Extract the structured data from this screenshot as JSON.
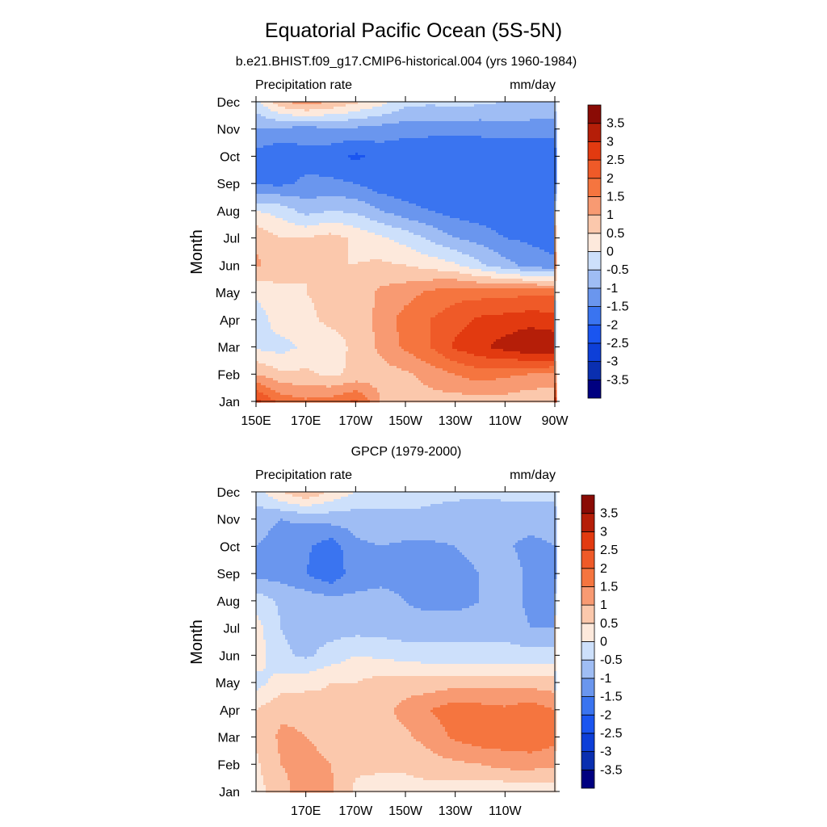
{
  "figure": {
    "title": "Equatorial Pacific Ocean (5S-5N)"
  },
  "colorbar": {
    "levels": [
      -3.5,
      -3,
      -2.5,
      -2,
      -1.5,
      -1,
      -0.5,
      0,
      0.5,
      1,
      1.5,
      2,
      2.5,
      3,
      3.5
    ],
    "labels": [
      "-3.5",
      "-3",
      "-2.5",
      "-2",
      "-1.5",
      "-1",
      "-0.5",
      "0",
      "0.5",
      "1",
      "1.5",
      "2",
      "2.5",
      "3",
      "3.5"
    ],
    "colors": [
      "#000080",
      "#0a2fb0",
      "#0d3fd8",
      "#1a55f0",
      "#3a74f0",
      "#6a96ee",
      "#9fbdf4",
      "#cde0fb",
      "#fde9dc",
      "#fbc8ac",
      "#f89a72",
      "#f5753f",
      "#ef5a28",
      "#e23a10",
      "#b51e08",
      "#8a0b05"
    ]
  },
  "chart_data": [
    {
      "type": "heatmap",
      "title": "b.e21.BHIST.f09_g17.CMIP6-historical.004 (yrs 1960-1984)",
      "left_string": "Precipitation rate",
      "right_string": "mm/day",
      "xlabel": "",
      "ylabel": "Month",
      "x_ticks": [
        "150E",
        "170E",
        "170W",
        "150W",
        "130W",
        "110W",
        "90W"
      ],
      "y_ticks": [
        "Jan",
        "Feb",
        "Mar",
        "Apr",
        "May",
        "Jun",
        "Jul",
        "Aug",
        "Sep",
        "Oct",
        "Nov",
        "Dec"
      ],
      "x_range": [
        "150E",
        "90W"
      ],
      "y_range": [
        "Jan",
        "Dec"
      ],
      "units": "mm/day",
      "x": [
        "150E",
        "160E",
        "170E",
        "180",
        "170W",
        "160W",
        "150W",
        "140W",
        "130W",
        "120W",
        "110W",
        "100W",
        "90W"
      ],
      "y": [
        "Jan",
        "Feb",
        "Mar",
        "Apr",
        "May",
        "Jun",
        "Jul",
        "Aug",
        "Sep",
        "Oct",
        "Nov",
        "Dec"
      ],
      "z": [
        [
          2.7,
          1.8,
          1.6,
          1.7,
          2.1,
          1.0,
          0.7,
          0.8,
          0.8,
          0.7,
          0.8,
          0.6,
          0.5
        ],
        [
          1.0,
          0.6,
          0.6,
          0.4,
          0.6,
          0.8,
          0.9,
          1.2,
          1.5,
          1.8,
          1.6,
          1.5,
          1.5
        ],
        [
          -0.1,
          -0.2,
          0.1,
          0.3,
          0.6,
          1.1,
          1.6,
          2.0,
          2.6,
          2.9,
          3.2,
          3.5,
          3.4
        ],
        [
          -0.3,
          0.3,
          0.4,
          0.6,
          0.6,
          1.2,
          1.7,
          2.0,
          2.3,
          2.6,
          2.7,
          2.8,
          2.7
        ],
        [
          0.1,
          0.4,
          0.5,
          0.6,
          0.6,
          1.1,
          1.3,
          1.6,
          1.8,
          1.8,
          1.8,
          1.9,
          1.9
        ],
        [
          1.1,
          0.7,
          0.5,
          0.5,
          0.5,
          0.6,
          0.5,
          0.3,
          0.1,
          -0.4,
          -0.8,
          -1.2,
          -1.4
        ],
        [
          0.9,
          0.5,
          0.5,
          0.7,
          0.4,
          0.1,
          -0.2,
          -0.6,
          -1.0,
          -1.2,
          -1.5,
          -1.6,
          -1.7
        ],
        [
          0.0,
          -0.2,
          -0.7,
          -0.5,
          -0.6,
          -1.0,
          -1.3,
          -1.5,
          -1.7,
          -1.8,
          -1.9,
          -1.9,
          -2.0
        ],
        [
          -1.6,
          -1.6,
          -1.4,
          -1.4,
          -1.5,
          -1.8,
          -1.9,
          -2.0,
          -2.0,
          -2.0,
          -2.0,
          -2.0,
          -2.0
        ],
        [
          -1.7,
          -1.9,
          -1.7,
          -1.8,
          -2.1,
          -1.8,
          -1.9,
          -2.0,
          -2.0,
          -2.0,
          -2.0,
          -2.0,
          -1.9
        ],
        [
          -1.0,
          -1.1,
          -1.2,
          -1.1,
          -1.1,
          -1.2,
          -1.3,
          -1.3,
          -1.3,
          -1.3,
          -1.2,
          -1.2,
          -1.3
        ],
        [
          -0.2,
          0.9,
          1.3,
          1.0,
          0.6,
          0.2,
          -0.3,
          -0.4,
          -0.3,
          -0.4,
          -0.5,
          -0.6,
          -0.5
        ]
      ]
    },
    {
      "type": "heatmap",
      "title": "GPCP (1979-2000)",
      "left_string": "Precipitation rate",
      "right_string": "mm/day",
      "xlabel": "",
      "ylabel": "Month",
      "x_ticks": [
        "170E",
        "170W",
        "150W",
        "130W",
        "110W"
      ],
      "y_ticks": [
        "Jan",
        "Feb",
        "Mar",
        "Apr",
        "May",
        "Jun",
        "Jul",
        "Aug",
        "Sep",
        "Oct",
        "Nov",
        "Dec"
      ],
      "x_range": [
        "150E",
        "90W"
      ],
      "y_range": [
        "Jan",
        "Dec"
      ],
      "units": "mm/day",
      "x": [
        "150E",
        "160E",
        "170E",
        "180",
        "170W",
        "160W",
        "150W",
        "140W",
        "130W",
        "120W",
        "110W",
        "100W",
        "90W"
      ],
      "y": [
        "Jan",
        "Feb",
        "Mar",
        "Apr",
        "May",
        "Jun",
        "Jul",
        "Aug",
        "Sep",
        "Oct",
        "Nov",
        "Dec"
      ],
      "z": [
        [
          0.3,
          0.8,
          1.3,
          1.1,
          0.4,
          0.3,
          0.3,
          0.3,
          0.2,
          0.1,
          0.1,
          0.2,
          0.2
        ],
        [
          0.4,
          1.0,
          1.2,
          1.0,
          0.6,
          0.6,
          0.6,
          0.8,
          0.9,
          1.0,
          1.2,
          1.2,
          1.1
        ],
        [
          0.6,
          1.1,
          1.0,
          0.8,
          0.7,
          0.7,
          0.9,
          1.2,
          1.6,
          1.8,
          1.8,
          1.9,
          1.7
        ],
        [
          0.5,
          0.9,
          0.9,
          0.6,
          0.6,
          0.8,
          1.2,
          1.5,
          1.8,
          1.7,
          1.6,
          1.8,
          1.5
        ],
        [
          -0.2,
          0.2,
          0.3,
          0.5,
          0.5,
          0.7,
          0.7,
          0.7,
          0.8,
          0.8,
          0.8,
          0.8,
          0.7
        ],
        [
          0.3,
          -0.4,
          -0.6,
          -0.3,
          0.0,
          -0.1,
          -0.2,
          -0.3,
          -0.3,
          -0.3,
          -0.3,
          -0.3,
          -0.3
        ],
        [
          0.2,
          -0.5,
          -0.7,
          -0.7,
          -0.7,
          -0.7,
          -0.8,
          -0.7,
          -0.7,
          -0.7,
          -0.7,
          -1.0,
          -1.0
        ],
        [
          -0.2,
          -0.6,
          -0.7,
          -0.8,
          -0.9,
          -0.9,
          -1.0,
          -1.2,
          -1.2,
          -1.0,
          -0.8,
          -1.1,
          -1.1
        ],
        [
          -1.2,
          -1.2,
          -1.5,
          -1.9,
          -1.2,
          -1.1,
          -1.1,
          -1.2,
          -1.1,
          -1.0,
          -0.7,
          -1.1,
          -1.1
        ],
        [
          -1.0,
          -1.2,
          -1.4,
          -1.8,
          -1.1,
          -1.0,
          -1.1,
          -1.1,
          -1.0,
          -0.9,
          -0.9,
          -1.2,
          -1.0
        ],
        [
          -0.8,
          -1.0,
          -0.9,
          -0.8,
          -0.8,
          -0.7,
          -0.6,
          -0.6,
          -0.7,
          -0.8,
          -0.7,
          -0.7,
          -0.7
        ],
        [
          -0.2,
          0.5,
          1.0,
          0.4,
          0.0,
          -0.1,
          -0.3,
          -0.4,
          -0.4,
          -0.4,
          -0.4,
          -0.4,
          -0.4
        ]
      ]
    }
  ]
}
